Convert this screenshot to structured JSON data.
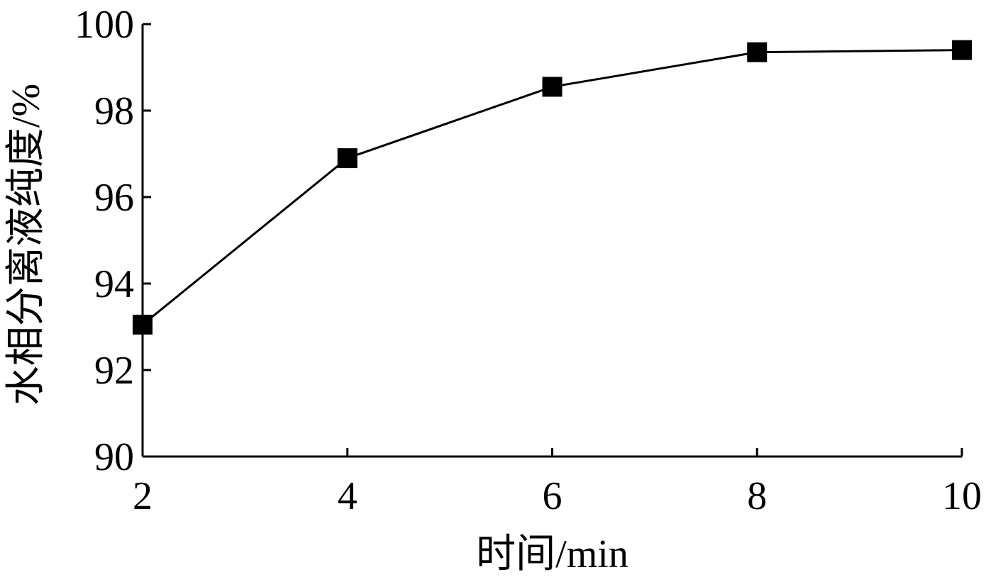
{
  "chart_data": {
    "type": "line",
    "title": "",
    "xlabel": "时间/min",
    "ylabel": "水相分离液纯度/%",
    "xlim": [
      2,
      10
    ],
    "ylim": [
      90,
      100
    ],
    "xticks": [
      2,
      4,
      6,
      8,
      10
    ],
    "yticks": [
      90,
      92,
      94,
      96,
      98,
      100
    ],
    "grid": false,
    "legend": "none",
    "series": [
      {
        "marker": "square",
        "color": "#000000",
        "x": [
          2,
          4,
          6,
          8,
          10
        ],
        "y": [
          93.05,
          96.9,
          98.55,
          99.35,
          99.4
        ]
      }
    ]
  }
}
